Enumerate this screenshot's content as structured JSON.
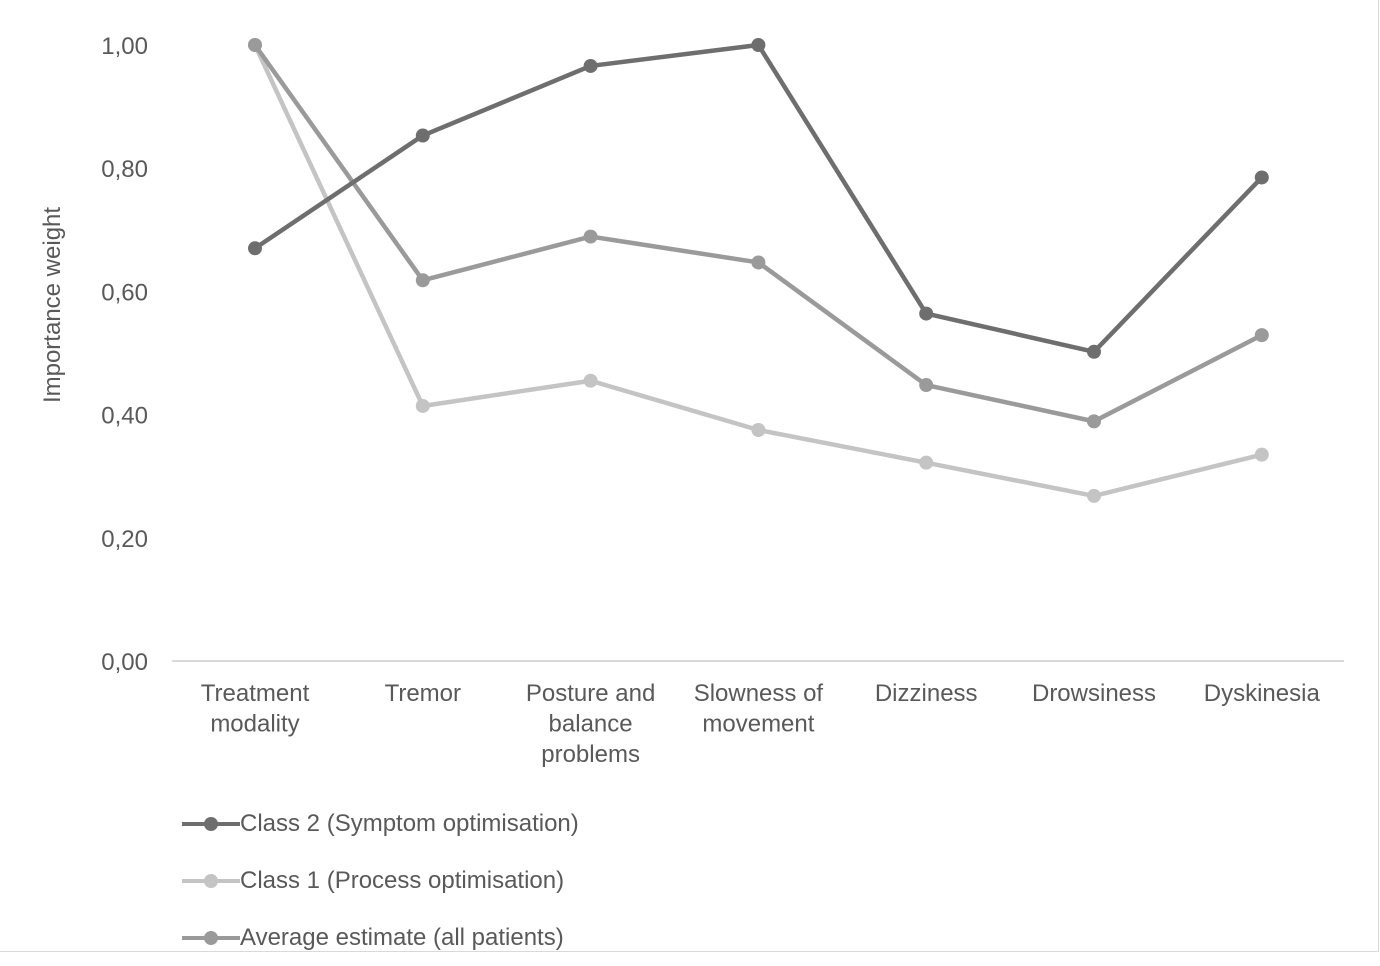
{
  "chart_data": {
    "type": "line",
    "categories": [
      [
        "Treatment",
        "modality"
      ],
      [
        "Tremor"
      ],
      [
        "Posture and",
        "balance",
        "problems"
      ],
      [
        "Slowness of",
        "movement"
      ],
      [
        "Dizziness"
      ],
      [
        "Drowsiness"
      ],
      [
        "Dyskinesia"
      ]
    ],
    "ylabel": "Importance weight",
    "ylim": [
      0,
      1
    ],
    "yticks": [
      0,
      0.2,
      0.4,
      0.6,
      0.8,
      1.0
    ],
    "ytick_labels": [
      "0,00",
      "0,20",
      "0,40",
      "0,60",
      "0,80",
      "1,00"
    ],
    "grid": false,
    "legend_position": "bottom-left",
    "series": [
      {
        "name": "Class 2 (Symptom optimisation)",
        "color": "#6e6e6e",
        "values": [
          0.67,
          0.853,
          0.966,
          1.0,
          0.564,
          0.502,
          0.785
        ]
      },
      {
        "name": "Class 1 (Process optimisation)",
        "color": "#c4c4c4",
        "values": [
          1.0,
          0.414,
          0.455,
          0.375,
          0.322,
          0.268,
          0.335
        ]
      },
      {
        "name": "Average estimate (all patients)",
        "color": "#9a9a9a",
        "values": [
          1.0,
          0.618,
          0.689,
          0.647,
          0.448,
          0.389,
          0.529
        ]
      }
    ]
  }
}
